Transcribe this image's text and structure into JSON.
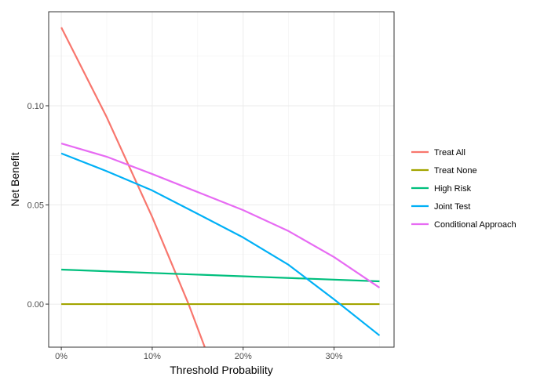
{
  "chart_data": {
    "type": "line",
    "title": "",
    "xlabel": "Threshold Probability",
    "ylabel": "Net Benefit",
    "xlim": [
      -0.0139,
      0.366
    ],
    "ylim": [
      -0.0217,
      0.1474
    ],
    "x_ticks": [
      0,
      0.1,
      0.2,
      0.3
    ],
    "x_tick_labels": [
      "0%",
      "10%",
      "20%",
      "30%"
    ],
    "y_ticks": [
      0,
      0.05,
      0.1
    ],
    "y_tick_labels": [
      "0.00",
      "0.05",
      "0.10"
    ],
    "grid": true,
    "legend_position": "right",
    "series": [
      {
        "name": "Treat All",
        "color": "#F8766D",
        "x": [
          0,
          0.05,
          0.1,
          0.14,
          0.16
        ],
        "y": [
          0.1395,
          0.0942,
          0.0439,
          0,
          -0.0244
        ]
      },
      {
        "name": "Treat None",
        "color": "#A3A500",
        "x": [
          0,
          0.35
        ],
        "y": [
          0,
          0
        ]
      },
      {
        "name": "High Risk",
        "color": "#00BF7D",
        "x": [
          0,
          0.35
        ],
        "y": [
          0.0174,
          0.0115
        ]
      },
      {
        "name": "Joint Test",
        "color": "#00B0F6",
        "x": [
          0,
          0.05,
          0.1,
          0.15,
          0.2,
          0.25,
          0.3,
          0.35
        ],
        "y": [
          0.076,
          0.067,
          0.0573,
          0.0455,
          0.0336,
          0.0198,
          0.0024,
          -0.0158
        ]
      },
      {
        "name": "Conditional Approach",
        "color": "#E76BF3",
        "x": [
          0,
          0.05,
          0.1,
          0.15,
          0.2,
          0.25,
          0.3,
          0.35
        ],
        "y": [
          0.081,
          0.0743,
          0.0656,
          0.0565,
          0.0474,
          0.0368,
          0.0237,
          0.0083
        ]
      }
    ]
  }
}
